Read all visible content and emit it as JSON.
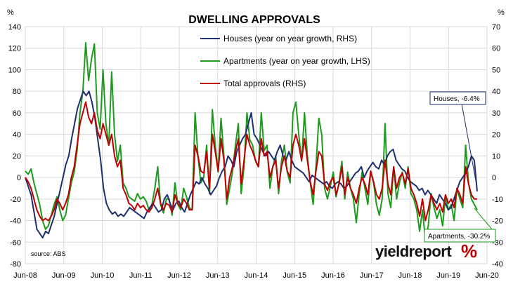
{
  "chart_data": {
    "type": "line",
    "title": "DWELLING APPROVALS",
    "left_axis": {
      "unit_label": "%",
      "min": -80,
      "max": 140,
      "ticks": [
        140,
        120,
        100,
        80,
        60,
        40,
        20,
        0,
        -20,
        -40,
        -60,
        -80
      ]
    },
    "right_axis": {
      "unit_label": "%",
      "min": -40,
      "max": 70,
      "ticks": [
        70,
        60,
        50,
        40,
        30,
        20,
        10,
        0,
        -10,
        -20,
        -30,
        -40
      ]
    },
    "x_ticks": [
      "Jun-08",
      "Jun-09",
      "Jun-10",
      "Jun-11",
      "Jun-12",
      "Jun-13",
      "Jun-14",
      "Jun-15",
      "Jun-16",
      "Jun-17",
      "Jun-18",
      "Jun-19",
      "Jun-20"
    ],
    "x_start": "2008-06",
    "x_end": "2020-06",
    "grid": true,
    "legend_position": "top-center",
    "series": [
      {
        "name": "Houses (year on year growth, RHS)",
        "axis": "right",
        "color": "#1f2f6e",
        "values": [
          0,
          -4,
          -8,
          -16,
          -24,
          -26,
          -28,
          -25,
          -26,
          -22,
          -18,
          -12,
          -6,
          0,
          6,
          10,
          18,
          25,
          32,
          36,
          40,
          38,
          40,
          35,
          28,
          18,
          8,
          -5,
          -12,
          -15,
          -17,
          -16,
          -18,
          -17,
          -18,
          -16,
          -14,
          -15,
          -16,
          -17,
          -18,
          -19,
          -16,
          -14,
          -12,
          -14,
          -16,
          -15,
          -10,
          -8,
          -12,
          -15,
          -12,
          -11,
          -14,
          -16,
          -12,
          -8,
          -5,
          -2,
          -3,
          0,
          -3,
          -5,
          -8,
          -6,
          -4,
          0,
          3,
          5,
          10,
          8,
          5,
          12,
          15,
          18,
          20,
          25,
          30,
          20,
          18,
          15,
          12,
          10,
          12,
          10,
          8,
          12,
          15,
          10,
          8,
          12,
          8,
          5,
          4,
          3,
          2,
          0,
          -2,
          1,
          0,
          -1,
          -2,
          -3,
          -2,
          -4,
          -5,
          -3,
          -2,
          -3,
          -5,
          -4,
          -2,
          0,
          2,
          3,
          5,
          0,
          3,
          5,
          7,
          5,
          4,
          8,
          6,
          10,
          12,
          13,
          8,
          6,
          4,
          3,
          0,
          -2,
          -3,
          -4,
          -6,
          -5,
          -8,
          -6,
          -8,
          -10,
          -12,
          -8,
          -10,
          -12,
          -15,
          -14,
          -10,
          -6,
          -2,
          0,
          2,
          5,
          10,
          8,
          -6.4
        ],
        "last_label": "Houses, -6.4%"
      },
      {
        "name": "Apartments (year on year growth, LHS)",
        "axis": "left",
        "color": "#1e9b1e",
        "values": [
          6,
          3,
          8,
          -5,
          -15,
          -25,
          -40,
          -48,
          -45,
          -35,
          -25,
          -18,
          -30,
          -40,
          -35,
          -20,
          -5,
          5,
          25,
          60,
          80,
          125,
          90,
          110,
          124,
          60,
          45,
          100,
          50,
          30,
          98,
          40,
          15,
          30,
          -5,
          -10,
          -18,
          -20,
          -22,
          -15,
          -20,
          -18,
          -22,
          -30,
          -25,
          -10,
          10,
          -25,
          -33,
          -20,
          -20,
          -35,
          -5,
          -25,
          -30,
          -10,
          -18,
          -28,
          -30,
          60,
          20,
          -5,
          0,
          30,
          -15,
          63,
          30,
          5,
          55,
          20,
          -25,
          -10,
          5,
          30,
          50,
          -15,
          10,
          60,
          35,
          30,
          15,
          10,
          60,
          25,
          30,
          -10,
          10,
          20,
          -15,
          15,
          30,
          5,
          -5,
          60,
          70,
          40,
          15,
          60,
          20,
          -5,
          -25,
          10,
          55,
          40,
          -10,
          -20,
          -8,
          5,
          -18,
          -5,
          15,
          -20,
          5,
          -10,
          -20,
          -42,
          -15,
          5,
          -10,
          -25,
          5,
          -5,
          -25,
          -35,
          -20,
          50,
          -15,
          -28,
          10,
          -20,
          -5,
          5,
          -10,
          10,
          -15,
          -20,
          -30,
          -50,
          -30,
          -58,
          -45,
          -15,
          -28,
          -38,
          -30,
          -45,
          -18,
          -30,
          -25,
          -40,
          -10,
          -20,
          -28,
          30,
          -5,
          -20,
          -25,
          -30.2
        ],
        "last_label": "Apartments, -30.2%"
      },
      {
        "name": "Total approvals (RHS)",
        "axis": "right",
        "color": "#c00000",
        "values": [
          0,
          -2,
          -5,
          -10,
          -15,
          -18,
          -20,
          -19,
          -20,
          -18,
          -15,
          -10,
          -12,
          -15,
          -12,
          -8,
          0,
          5,
          15,
          25,
          30,
          35,
          28,
          25,
          30,
          22,
          18,
          25,
          20,
          15,
          20,
          10,
          5,
          8,
          -5,
          -8,
          -12,
          -13,
          -15,
          -12,
          -14,
          -13,
          -15,
          -16,
          -14,
          -10,
          -5,
          -12,
          -15,
          -12,
          -13,
          -16,
          -8,
          -12,
          -14,
          -10,
          -12,
          -15,
          -15,
          15,
          10,
          3,
          2,
          12,
          -5,
          20,
          12,
          3,
          18,
          8,
          -10,
          0,
          5,
          12,
          18,
          -3,
          8,
          20,
          15,
          12,
          8,
          5,
          18,
          10,
          12,
          0,
          5,
          8,
          -5,
          5,
          10,
          3,
          0,
          15,
          20,
          15,
          8,
          18,
          8,
          -2,
          -8,
          3,
          12,
          10,
          -3,
          -6,
          -2,
          0,
          -8,
          -3,
          5,
          -8,
          0,
          -5,
          -8,
          -12,
          -5,
          0,
          -3,
          -8,
          3,
          -2,
          -8,
          -10,
          -5,
          8,
          -3,
          -8,
          5,
          -5,
          0,
          2,
          -3,
          4,
          -5,
          -8,
          -12,
          -18,
          -10,
          -20,
          -15,
          -8,
          -12,
          -15,
          -12,
          -16,
          -8,
          -12,
          -10,
          -14,
          -5,
          -8,
          -12,
          5,
          -3,
          -8,
          -10,
          -10
        ]
      }
    ],
    "annotations": [
      "Houses, -6.4%",
      "Apartments, -30.2%"
    ],
    "source": "source: ABS"
  },
  "branding": {
    "logo_text": "yieldreport",
    "logo_symbol": "%"
  }
}
